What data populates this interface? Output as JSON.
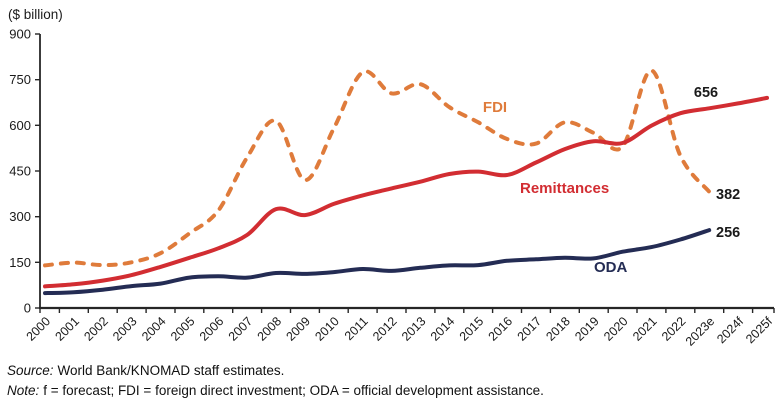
{
  "figure": {
    "unit_label": "($ billion)"
  },
  "footer": {
    "source_label": "Source:",
    "source_text": "World Bank/KNOMAD staff estimates.",
    "note_label": "Note:",
    "note_text": "f = forecast; FDI = foreign direct investment; ODA = official development assistance."
  },
  "chart_data": {
    "type": "line",
    "title": "",
    "unit_label": "($ billion)",
    "xlabel": "",
    "ylabel": "($ billion)",
    "ylim": [
      0,
      900
    ],
    "yticks": [
      0,
      150,
      300,
      450,
      600,
      750,
      900
    ],
    "grid": false,
    "legend_position": "inline-labels-on-lines",
    "categories": [
      "2000",
      "2001",
      "2002",
      "2003",
      "2004",
      "2005",
      "2006",
      "2007",
      "2008",
      "2009",
      "2010",
      "2011",
      "2012",
      "2013",
      "2014",
      "2015",
      "2016",
      "2017",
      "2018",
      "2019",
      "2020",
      "2021",
      "2022",
      "2023e",
      "2024f",
      "2025f"
    ],
    "series": [
      {
        "name": "FDI",
        "color": "#DF7B3B",
        "line_style": "dashed",
        "end_label": "382",
        "values": [
          140,
          149,
          141,
          150,
          180,
          245,
          320,
          495,
          615,
          420,
          590,
          775,
          705,
          735,
          660,
          610,
          555,
          540,
          610,
          575,
          530,
          780,
          500,
          382,
          null,
          null
        ]
      },
      {
        "name": "Remittances",
        "color": "#D22D32",
        "line_style": "solid",
        "end_label": "656",
        "values": [
          71,
          78,
          90,
          108,
          135,
          165,
          196,
          240,
          325,
          305,
          342,
          370,
          393,
          415,
          440,
          448,
          437,
          478,
          522,
          548,
          542,
          599,
          640,
          656,
          672,
          690
        ]
      },
      {
        "name": "ODA",
        "color": "#242C54",
        "line_style": "solid",
        "end_label": "256",
        "values": [
          49,
          52,
          60,
          72,
          80,
          100,
          104,
          100,
          115,
          112,
          118,
          128,
          122,
          132,
          140,
          141,
          155,
          160,
          165,
          163,
          185,
          200,
          225,
          256,
          null,
          null
        ]
      }
    ]
  }
}
